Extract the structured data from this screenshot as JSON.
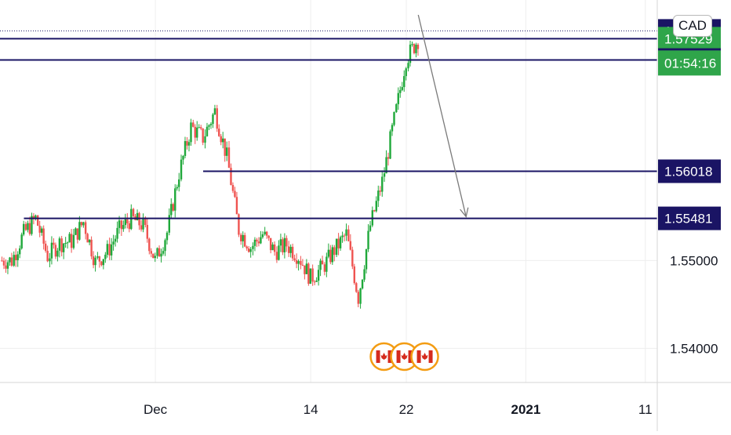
{
  "symbol_currency": "CAD",
  "colors": {
    "up": "#26a69a",
    "up_bright": "#1fa83a",
    "down": "#ef5350",
    "level_line": "#1a1464",
    "level_label_bg": "#1a1464",
    "current_label_bg": "#2fa54a",
    "arrow": "#7a7a7a",
    "grid": "#eeeeee",
    "event_ring": "#f39c12"
  },
  "chart_data": {
    "type": "candlestick",
    "title": "",
    "xlabel": "",
    "ylabel": "",
    "ylim": [
      1.5361,
      1.5797
    ],
    "y_ticks": [
      1.54,
      1.55
    ],
    "y_tick_labels": [
      "1.54000",
      "1.55000"
    ],
    "x_tick_labels": [
      "Dec",
      "14",
      "22",
      "2021",
      "11"
    ],
    "x_tick_dates": [
      "2020-12-01",
      "2020-12-14",
      "2020-12-22",
      "2021-01-01",
      "2021-01-11"
    ],
    "x_range": [
      "2020-11-18",
      "2021-01-12"
    ],
    "grid": true,
    "series": [
      {
        "candles": [
          {
            "date": "2020-11-18",
            "close": 1.55
          },
          {
            "date": "2020-11-19",
            "close": 1.5531
          },
          {
            "date": "2020-11-20",
            "close": 1.5548
          },
          {
            "date": "2020-11-21",
            "close": 1.5505
          },
          {
            "date": "2020-11-22",
            "close": 1.552
          },
          {
            "date": "2020-11-23",
            "close": 1.5522
          },
          {
            "date": "2020-11-24",
            "close": 1.5544
          },
          {
            "date": "2020-11-25",
            "close": 1.5498
          },
          {
            "date": "2020-11-26",
            "close": 1.551
          },
          {
            "date": "2020-11-27",
            "close": 1.5535
          },
          {
            "date": "2020-11-28",
            "close": 1.5548
          },
          {
            "date": "2020-11-29",
            "close": 1.554
          },
          {
            "date": "2020-11-30",
            "close": 1.55
          },
          {
            "date": "2020-12-01",
            "close": 1.5532
          },
          {
            "date": "2020-12-02",
            "close": 1.56
          },
          {
            "date": "2020-12-03",
            "close": 1.5652
          },
          {
            "date": "2020-12-04",
            "close": 1.564
          },
          {
            "date": "2020-12-05",
            "close": 1.567
          },
          {
            "date": "2020-12-06",
            "close": 1.5618
          },
          {
            "date": "2020-12-07",
            "close": 1.5535
          },
          {
            "date": "2020-12-08",
            "close": 1.5515
          },
          {
            "date": "2020-12-09",
            "close": 1.553
          },
          {
            "date": "2020-12-10",
            "close": 1.551
          },
          {
            "date": "2020-12-11",
            "close": 1.5518
          },
          {
            "date": "2020-12-12",
            "close": 1.5505
          },
          {
            "date": "2020-12-13",
            "close": 1.548
          },
          {
            "date": "2020-12-14",
            "close": 1.5492
          },
          {
            "date": "2020-12-15",
            "close": 1.5512
          },
          {
            "date": "2020-12-16",
            "close": 1.553
          },
          {
            "date": "2020-12-17",
            "close": 1.5458
          },
          {
            "date": "2020-12-18",
            "close": 1.554
          },
          {
            "date": "2020-12-19",
            "close": 1.559
          },
          {
            "date": "2020-12-20",
            "close": 1.566
          },
          {
            "date": "2020-12-21",
            "close": 1.573
          },
          {
            "date": "2020-12-22",
            "close": 1.5752
          }
        ]
      }
    ],
    "horizontal_levels": [
      {
        "value": 1.57618,
        "label": "1.57618",
        "style": "dotted"
      },
      {
        "value": 1.57529,
        "label": "1.57529",
        "style": "current"
      },
      {
        "value": 1.57286,
        "label": "1.57286",
        "style": "line"
      },
      {
        "value": 1.56018,
        "label": "1.56018",
        "style": "line"
      },
      {
        "value": 1.55481,
        "label": "1.55481",
        "style": "line"
      }
    ],
    "countdown_label": "01:54:16",
    "annotation_arrow": {
      "from_date": "2020-12-23",
      "from_value": 1.578,
      "to_date": "2020-12-27",
      "to_value": 1.555
    },
    "event_markers": {
      "date": "2020-12-20",
      "count": 3,
      "flag": "Canada"
    }
  }
}
